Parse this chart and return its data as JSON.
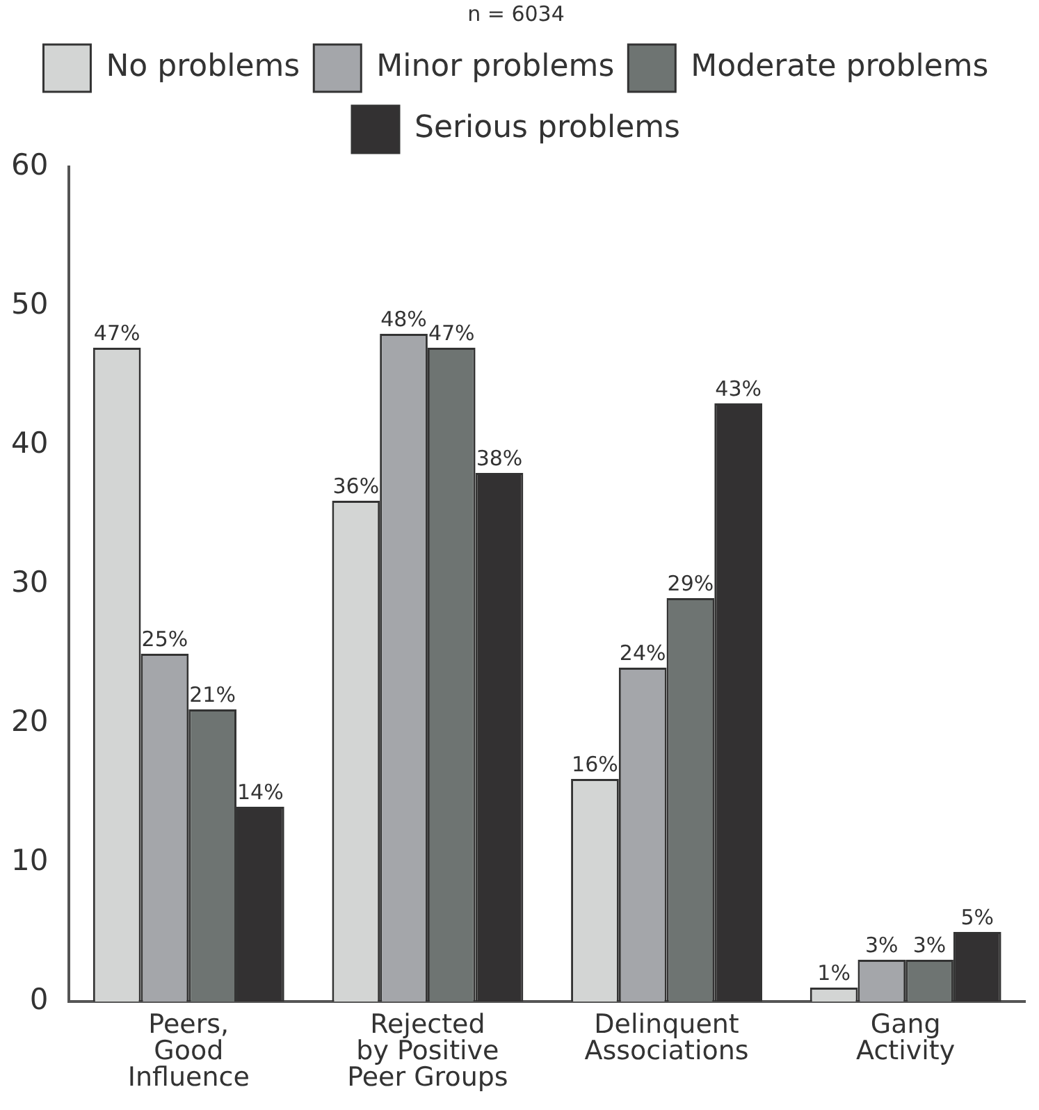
{
  "chart_data": {
    "type": "bar",
    "title": "n = 6034",
    "categories": [
      "Peers,\nGood\nInfluence",
      "Rejected\nby Positive\nPeer Groups",
      "Delinquent\nAssociations",
      "Gang\nActivity"
    ],
    "series": [
      {
        "name": "No problems",
        "color": "#d3d5d4",
        "values": [
          47,
          36,
          16,
          1
        ],
        "value_labels": [
          "47%",
          "36%",
          "16%",
          "1%"
        ]
      },
      {
        "name": "Minor problems",
        "color": "#a4a6aa",
        "values": [
          25,
          48,
          24,
          3
        ],
        "value_labels": [
          "25%",
          "48%",
          "24%",
          "3%"
        ]
      },
      {
        "name": "Moderate problems",
        "color": "#6e7472",
        "values": [
          21,
          47,
          29,
          3
        ],
        "value_labels": [
          "21%",
          "47%",
          "29%",
          "3%"
        ]
      },
      {
        "name": "Serious problems",
        "color": "#333132",
        "values": [
          14,
          38,
          43,
          5
        ],
        "value_labels": [
          "14%",
          "38%",
          "43%",
          "5%"
        ]
      }
    ],
    "ylim": [
      0,
      60
    ],
    "yticks": [
      0,
      10,
      20,
      30,
      40,
      50,
      60
    ],
    "grid": false,
    "legend": "top"
  }
}
